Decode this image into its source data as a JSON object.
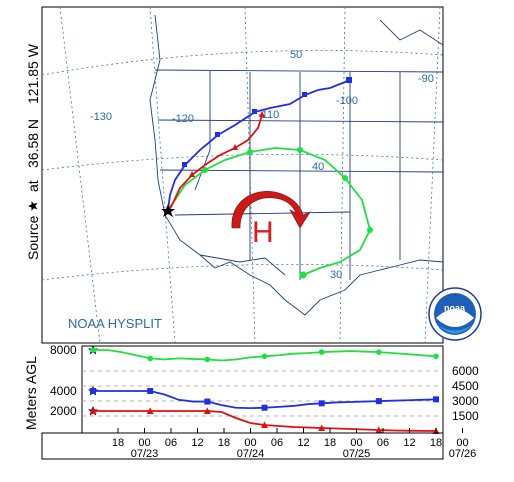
{
  "source_label": {
    "word": "Source",
    "at": "at",
    "lat": "36.58 N",
    "lon": "121.85 W"
  },
  "map": {
    "longitude_labels": [
      "-130",
      "-120",
      "-110",
      "-100",
      "-90"
    ],
    "latitude_labels": [
      "50",
      "40",
      "30"
    ],
    "high_pressure_label": "H",
    "credit": "NOAA HYSPLIT",
    "logo_text": "noaa",
    "colors": {
      "map_lines": "#1f3c80",
      "grid": "#3b6fb0",
      "text_blue": "#2a6aa8",
      "high_arrow": "#cc1a1a",
      "high_text": "#e11a1a"
    }
  },
  "chart_data": {
    "type": "line",
    "ylabel": "Meters AGL",
    "x_ticks": [
      "18",
      "00",
      "06",
      "12",
      "18",
      "00",
      "06",
      "12",
      "18",
      "00",
      "06",
      "12",
      "18",
      "00"
    ],
    "x_dates": [
      "07/23",
      "07/24",
      "07/25",
      "07/26"
    ],
    "left_axis_labels": [
      "8000",
      "4000",
      "2000"
    ],
    "right_axis_labels": [
      "6000",
      "4500",
      "3000",
      "1500"
    ],
    "series": [
      {
        "color": "#20e040",
        "marker": "circle",
        "hours": [
          0,
          3,
          6,
          9,
          12,
          15,
          18,
          21,
          24,
          27,
          30,
          33,
          36,
          39,
          42,
          45,
          48,
          51,
          54,
          57,
          60,
          63,
          66,
          69,
          72
        ],
        "values": [
          8000,
          8000,
          7800,
          7500,
          7200,
          7100,
          7200,
          7150,
          7100,
          7000,
          7100,
          7300,
          7400,
          7500,
          7650,
          7700,
          7800,
          7850,
          7900,
          7850,
          7800,
          7700,
          7600,
          7500,
          7400
        ]
      },
      {
        "color": "#2030e0",
        "marker": "square",
        "hours": [
          0,
          3,
          6,
          9,
          12,
          15,
          18,
          21,
          24,
          27,
          30,
          33,
          36,
          39,
          42,
          45,
          48,
          51,
          54,
          57,
          60,
          63,
          66,
          69,
          72
        ],
        "values": [
          4000,
          4000,
          4000,
          4000,
          4000,
          3600,
          3000,
          2800,
          2800,
          2400,
          2100,
          2050,
          2100,
          2200,
          2300,
          2500,
          2600,
          2700,
          2750,
          2800,
          2850,
          2900,
          2950,
          3000,
          3050
        ]
      },
      {
        "color": "#e01010",
        "marker": "triangle",
        "hours": [
          0,
          3,
          6,
          9,
          12,
          15,
          18,
          21,
          24,
          27,
          30,
          33,
          36,
          39,
          42,
          45,
          48,
          51,
          54,
          57,
          60,
          63,
          66,
          69,
          72
        ],
        "values": [
          2000,
          2000,
          2000,
          2000,
          2000,
          2000,
          2000,
          2000,
          2000,
          1900,
          1300,
          800,
          600,
          500,
          400,
          350,
          300,
          250,
          200,
          150,
          100,
          50,
          30,
          15,
          0
        ]
      }
    ]
  },
  "trajectories": {
    "green_color": "#20e040",
    "blue_color": "#2030e0",
    "red_color": "#e01010"
  }
}
